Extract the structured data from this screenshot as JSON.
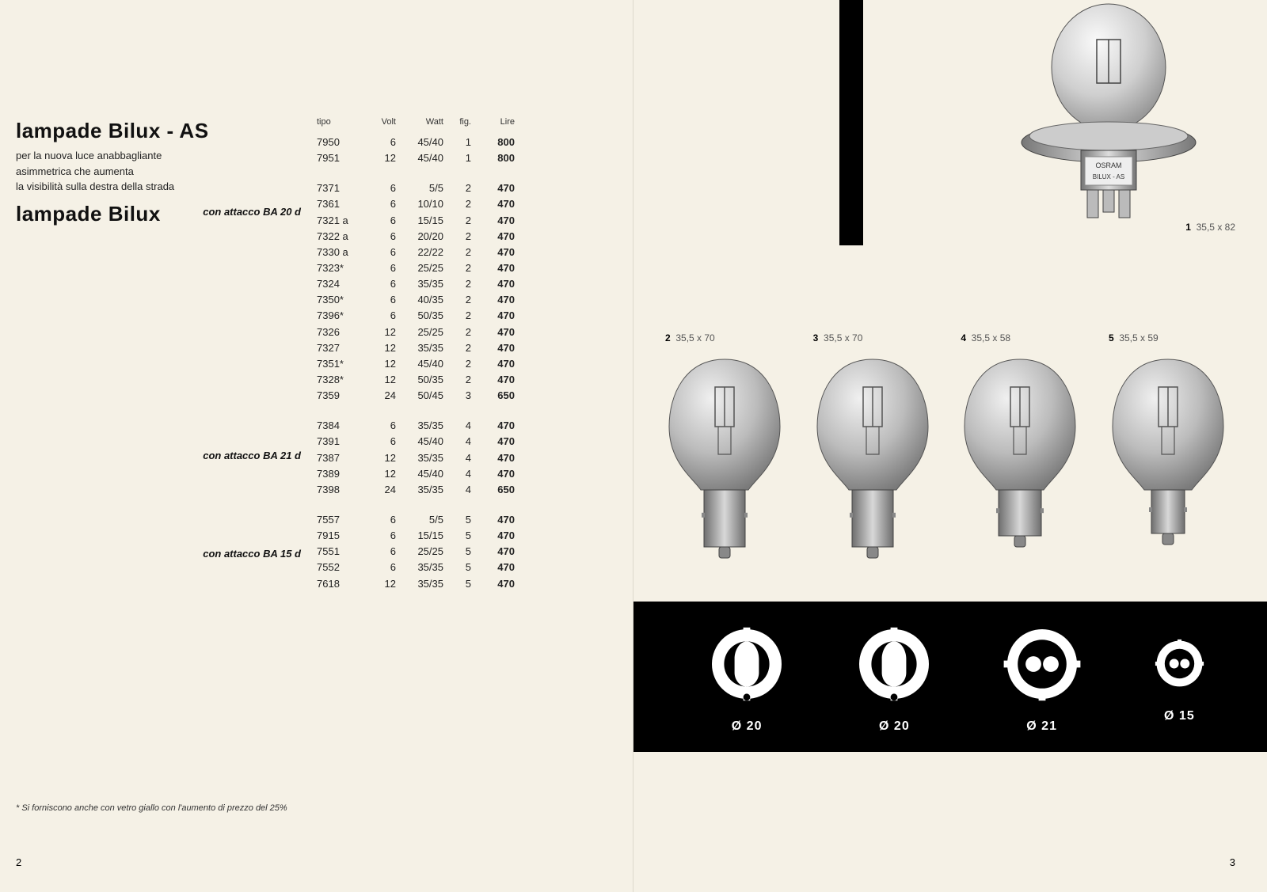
{
  "left": {
    "section_as": {
      "title": "lampade Bilux - AS",
      "subtitle": "per la nuova luce anabbagliante\nasimmetrica che aumenta\nla visibilità sulla destra della strada"
    },
    "section_bilux": {
      "title": "lampade Bilux"
    },
    "columns": {
      "tipo": "tipo",
      "volt": "Volt",
      "watt": "Watt",
      "fig": "fig.",
      "lire": "Lire"
    },
    "rows_as": [
      {
        "tipo": "7950",
        "volt": "6",
        "watt": "45/40",
        "fig": "1",
        "lire": "800"
      },
      {
        "tipo": "7951",
        "volt": "12",
        "watt": "45/40",
        "fig": "1",
        "lire": "800"
      }
    ],
    "attacco1": "con attacco BA 20 d",
    "rows1": [
      {
        "tipo": "7371",
        "volt": "6",
        "watt": "5/5",
        "fig": "2",
        "lire": "470"
      },
      {
        "tipo": "7361",
        "volt": "6",
        "watt": "10/10",
        "fig": "2",
        "lire": "470"
      },
      {
        "tipo": "7321 a",
        "volt": "6",
        "watt": "15/15",
        "fig": "2",
        "lire": "470"
      },
      {
        "tipo": "7322 a",
        "volt": "6",
        "watt": "20/20",
        "fig": "2",
        "lire": "470"
      },
      {
        "tipo": "7330 a",
        "volt": "6",
        "watt": "22/22",
        "fig": "2",
        "lire": "470"
      },
      {
        "tipo": "7323*",
        "volt": "6",
        "watt": "25/25",
        "fig": "2",
        "lire": "470"
      },
      {
        "tipo": "7324",
        "volt": "6",
        "watt": "35/35",
        "fig": "2",
        "lire": "470"
      },
      {
        "tipo": "7350*",
        "volt": "6",
        "watt": "40/35",
        "fig": "2",
        "lire": "470"
      },
      {
        "tipo": "7396*",
        "volt": "6",
        "watt": "50/35",
        "fig": "2",
        "lire": "470"
      },
      {
        "tipo": "7326",
        "volt": "12",
        "watt": "25/25",
        "fig": "2",
        "lire": "470"
      },
      {
        "tipo": "7327",
        "volt": "12",
        "watt": "35/35",
        "fig": "2",
        "lire": "470"
      },
      {
        "tipo": "7351*",
        "volt": "12",
        "watt": "45/40",
        "fig": "2",
        "lire": "470"
      },
      {
        "tipo": "7328*",
        "volt": "12",
        "watt": "50/35",
        "fig": "2",
        "lire": "470"
      },
      {
        "tipo": "7359",
        "volt": "24",
        "watt": "50/45",
        "fig": "3",
        "lire": "650"
      }
    ],
    "attacco2": "con attacco BA 21 d",
    "rows2": [
      {
        "tipo": "7384",
        "volt": "6",
        "watt": "35/35",
        "fig": "4",
        "lire": "470"
      },
      {
        "tipo": "7391",
        "volt": "6",
        "watt": "45/40",
        "fig": "4",
        "lire": "470"
      },
      {
        "tipo": "7387",
        "volt": "12",
        "watt": "35/35",
        "fig": "4",
        "lire": "470"
      },
      {
        "tipo": "7389",
        "volt": "12",
        "watt": "45/40",
        "fig": "4",
        "lire": "470"
      },
      {
        "tipo": "7398",
        "volt": "24",
        "watt": "35/35",
        "fig": "4",
        "lire": "650"
      }
    ],
    "attacco3": "con attacco BA 15 d",
    "rows3": [
      {
        "tipo": "7557",
        "volt": "6",
        "watt": "5/5",
        "fig": "5",
        "lire": "470"
      },
      {
        "tipo": "7915",
        "volt": "6",
        "watt": "15/15",
        "fig": "5",
        "lire": "470"
      },
      {
        "tipo": "7551",
        "volt": "6",
        "watt": "25/25",
        "fig": "5",
        "lire": "470"
      },
      {
        "tipo": "7552",
        "volt": "6",
        "watt": "35/35",
        "fig": "5",
        "lire": "470"
      },
      {
        "tipo": "7618",
        "volt": "12",
        "watt": "35/35",
        "fig": "5",
        "lire": "470"
      }
    ],
    "footnote": "* Si forniscono anche con vetro giallo con l'aumento di prezzo del 25%",
    "page_number": "2"
  },
  "right": {
    "hero": {
      "num": "1",
      "dims": "35,5 x 82",
      "brand_line1": "OSRAM",
      "brand_line2": "BILUX - AS"
    },
    "bulbs": [
      {
        "num": "2",
        "dims": "35,5 x 70"
      },
      {
        "num": "3",
        "dims": "35,5 x 70"
      },
      {
        "num": "4",
        "dims": "35,5 x 58"
      },
      {
        "num": "5",
        "dims": "35,5 x 59"
      }
    ],
    "sockets": [
      {
        "label": "Ø 20",
        "type": "ba20d"
      },
      {
        "label": "Ø 20",
        "type": "ba20d"
      },
      {
        "label": "Ø 21",
        "type": "ba21d"
      },
      {
        "label": "Ø 15",
        "type": "ba15d"
      }
    ],
    "page_number": "3"
  },
  "style": {
    "background_color": "#f5f1e6",
    "text_color": "#222",
    "band_color": "#000000",
    "bulb_glass": "#b5b5b5",
    "bulb_base": "#9a9a9a",
    "title_fontsize": 26,
    "body_fontsize": 13
  }
}
